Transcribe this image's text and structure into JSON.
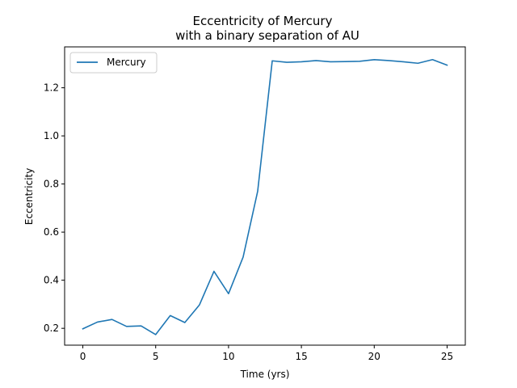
{
  "chart_data": {
    "type": "line",
    "title": "Eccentricity of Mercury",
    "subtitle": "with a binary separation of AU",
    "xlabel": "Time (yrs)",
    "ylabel": "Eccentricity",
    "xlim": [
      -1.25,
      26.25
    ],
    "ylim": [
      0.13,
      1.37
    ],
    "xticks": [
      0,
      5,
      10,
      15,
      20,
      25
    ],
    "yticks": [
      0.2,
      0.4,
      0.6,
      0.8,
      1.0,
      1.2
    ],
    "ytick_labels": [
      "0.2",
      "0.4",
      "0.6",
      "0.8",
      "1.0",
      "1.2"
    ],
    "grid": false,
    "legend": "top-left",
    "series": [
      {
        "name": "Mercury",
        "color": "#1f77b4",
        "x": [
          0,
          1,
          2,
          3,
          4,
          5,
          6,
          7,
          8,
          9,
          10,
          11,
          12,
          13,
          14,
          15,
          16,
          17,
          18,
          19,
          20,
          21,
          22,
          23,
          24,
          25
        ],
        "y": [
          0.198,
          0.226,
          0.237,
          0.208,
          0.21,
          0.174,
          0.253,
          0.224,
          0.297,
          0.437,
          0.344,
          0.496,
          0.77,
          1.312,
          1.306,
          1.308,
          1.313,
          1.308,
          1.309,
          1.31,
          1.317,
          1.313,
          1.308,
          1.302,
          1.317,
          1.294
        ]
      }
    ]
  }
}
